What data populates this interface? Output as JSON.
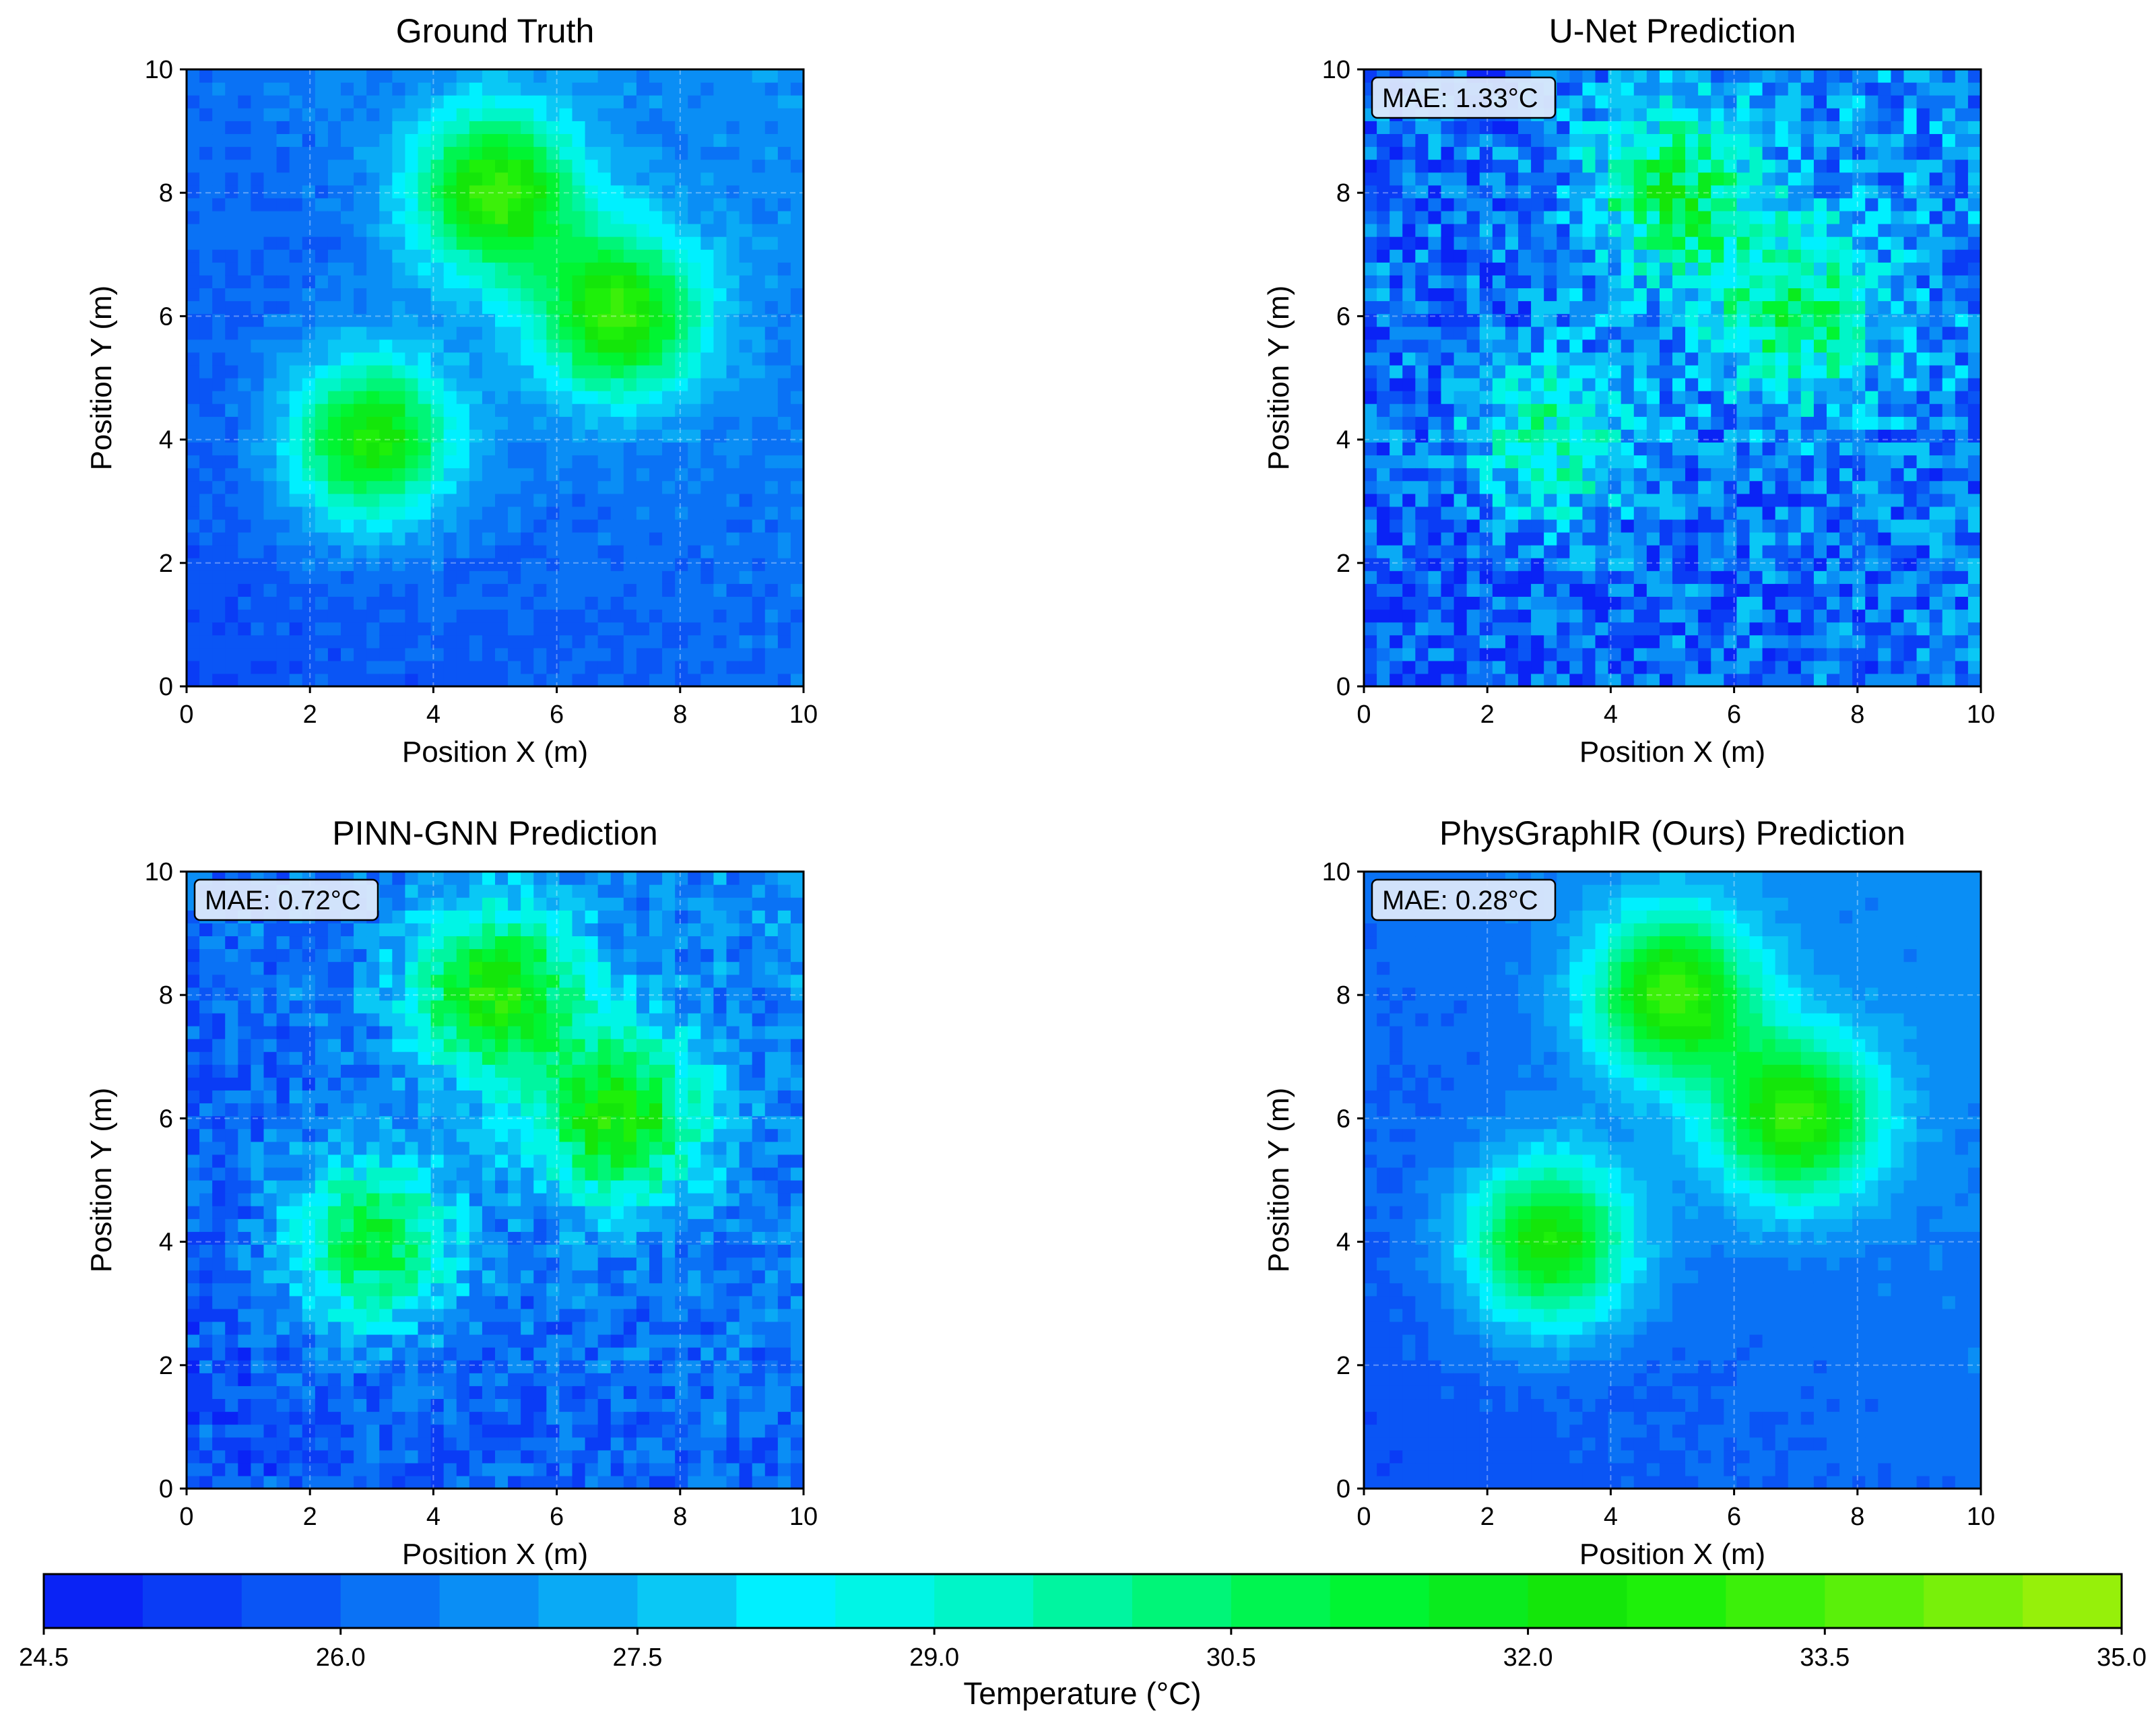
{
  "chart_data": {
    "type": "heatmap",
    "colormap": "jet-like (blue → cyan → green → yellow-green)",
    "grid_lines": true,
    "x_ticks": [
      0,
      2,
      4,
      6,
      8,
      10
    ],
    "y_ticks": [
      0,
      2,
      4,
      6,
      8,
      10
    ],
    "xlim": [
      0,
      10
    ],
    "ylim": [
      0,
      10
    ],
    "panels": [
      {
        "key": "ground_truth",
        "title": "Ground Truth",
        "xlabel": "Position X (m)",
        "ylabel": "Position Y (m)",
        "mae": "",
        "noise_level": 0.35,
        "hotspots": [
          {
            "x": 3.0,
            "y": 4.0,
            "peak_c": 32.8
          },
          {
            "x": 5.0,
            "y": 8.0,
            "peak_c": 33.2
          },
          {
            "x": 7.0,
            "y": 6.0,
            "peak_c": 33.0
          }
        ]
      },
      {
        "key": "unet",
        "title": "U-Net Prediction",
        "xlabel": "Position X (m)",
        "ylabel": "Position Y (m)",
        "mae": "MAE: 1.33°C",
        "noise_level": 1.6,
        "hotspots": [
          {
            "x": 3.0,
            "y": 4.0,
            "peak_c": 29.8
          },
          {
            "x": 5.0,
            "y": 8.0,
            "peak_c": 31.0
          },
          {
            "x": 7.0,
            "y": 6.0,
            "peak_c": 30.5
          }
        ]
      },
      {
        "key": "pinn_gnn",
        "title": "PINN-GNN Prediction",
        "xlabel": "Position X (m)",
        "ylabel": "Position Y (m)",
        "mae": "MAE: 0.72°C",
        "noise_level": 0.9,
        "hotspots": [
          {
            "x": 3.0,
            "y": 4.0,
            "peak_c": 31.5
          },
          {
            "x": 5.0,
            "y": 8.0,
            "peak_c": 32.6
          },
          {
            "x": 7.0,
            "y": 6.0,
            "peak_c": 32.4
          }
        ]
      },
      {
        "key": "physgraphir",
        "title": "PhysGraphIR (Ours) Prediction",
        "xlabel": "Position X (m)",
        "ylabel": "Position Y (m)",
        "mae": "MAE: 0.28°C",
        "noise_level": 0.2,
        "hotspots": [
          {
            "x": 3.0,
            "y": 4.0,
            "peak_c": 32.8
          },
          {
            "x": 5.0,
            "y": 8.0,
            "peak_c": 33.2
          },
          {
            "x": 7.0,
            "y": 6.0,
            "peak_c": 33.0
          }
        ]
      }
    ],
    "colorbar": {
      "label": "Temperature (°C)",
      "min": 24.5,
      "max": 35.0,
      "levels": 21,
      "ticks": [
        "24.5",
        "26.0",
        "27.5",
        "29.0",
        "30.5",
        "32.0",
        "33.5",
        "35.0"
      ],
      "colors": [
        "#0a23f5",
        "#0a3cf5",
        "#0a55f5",
        "#0a72f5",
        "#0a8ef5",
        "#0aaaf5",
        "#0ac8f5",
        "#00f0ff",
        "#00f5e6",
        "#00f5c8",
        "#00f5a0",
        "#00f578",
        "#00f550",
        "#00f532",
        "#0aeb1e",
        "#14e60a",
        "#1ef00a",
        "#3cf00a",
        "#5af00a",
        "#78f00a",
        "#96f00a"
      ]
    }
  }
}
